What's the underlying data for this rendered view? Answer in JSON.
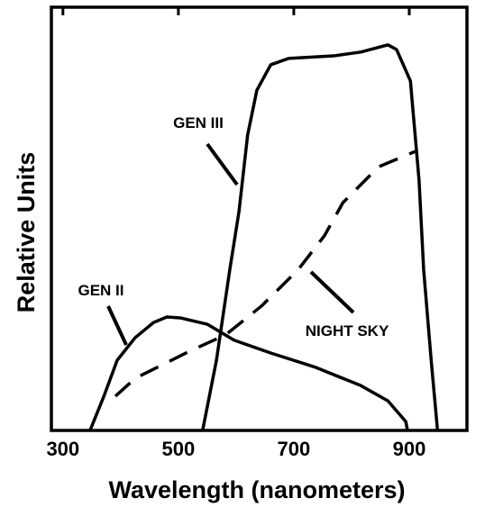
{
  "chart_data": {
    "type": "line",
    "xlabel": "Wavelength  (nanometers)",
    "ylabel": "Relative Units",
    "xlim": [
      280,
      1000
    ],
    "ylim": [
      0,
      100
    ],
    "xticks": [
      300,
      500,
      700,
      900
    ],
    "series": [
      {
        "name": "GEN III",
        "color": "#000000",
        "dash": false,
        "x": [
          542,
          566,
          589,
          605,
          620,
          636,
          660,
          691,
          769,
          816,
          863,
          878,
          902,
          917,
          925,
          938,
          949
        ],
        "values": [
          0,
          16.6,
          37.9,
          51.7,
          69.8,
          80.4,
          86.4,
          87.9,
          88.5,
          89.4,
          91.1,
          90.0,
          82.6,
          59.1,
          37.9,
          16.6,
          0
        ]
      },
      {
        "name": "GEN II",
        "color": "#000000",
        "dash": false,
        "x": [
          347,
          371,
          394,
          425,
          457,
          480,
          503,
          550,
          597,
          660,
          738,
          816,
          863,
          894,
          897
        ],
        "values": [
          0,
          8.1,
          16.6,
          21.9,
          25.5,
          26.8,
          26.6,
          25.1,
          21.3,
          18.3,
          14.9,
          10.6,
          7.0,
          2.1,
          0
        ]
      },
      {
        "name": "NIGHT SKY",
        "color": "#000000",
        "dash": true,
        "x": [
          391,
          425,
          472,
          519,
          582,
          644,
          707,
          753,
          785,
          847,
          910
        ],
        "values": [
          8.1,
          12.3,
          15.5,
          18.7,
          22.6,
          29.4,
          37.9,
          46,
          53.8,
          62.3,
          65.9
        ]
      }
    ]
  }
}
